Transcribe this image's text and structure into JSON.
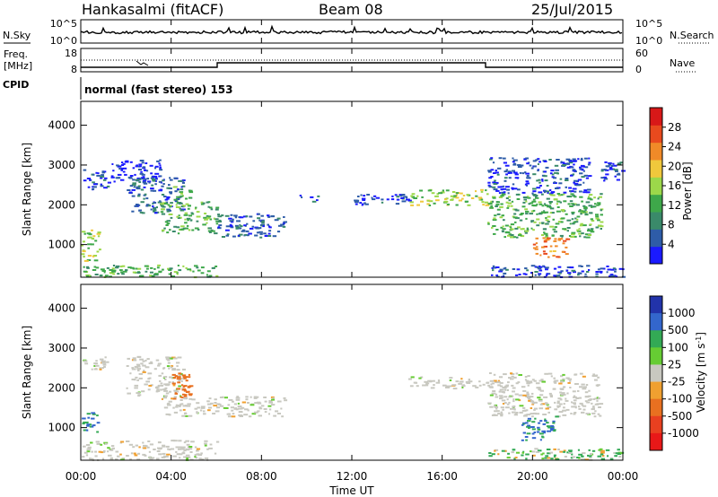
{
  "header": {
    "station": "Hankasalmi (fitACF)",
    "beam": "Beam 08",
    "date": "25/Jul/2015"
  },
  "noise_panel": {
    "left_label": "N.Sky",
    "right_label": "N.Search",
    "left_ticks": [
      "10^5",
      "10^0"
    ],
    "right_ticks": [
      "10^5",
      "10^0"
    ]
  },
  "freq_panel": {
    "left_label_line1": "Freq.",
    "left_label_line2": "[MHz]",
    "left_ticks": [
      "18",
      "8"
    ],
    "right_label": "Nave",
    "right_ticks": [
      "60",
      "0"
    ]
  },
  "cpid": {
    "label": "CPID",
    "value": "normal (fast stereo) 153"
  },
  "axes": {
    "x_ticks": [
      "00:00",
      "04:00",
      "08:00",
      "12:00",
      "16:00",
      "20:00",
      "00:00"
    ],
    "x_label": "Time UT",
    "y_ticks": [
      "1000",
      "2000",
      "3000",
      "4000"
    ],
    "y_label": "Slant Range [km]"
  },
  "colors": {
    "power": [
      "#1a1aff",
      "#2e5ca8",
      "#3a8a6a",
      "#3ea84a",
      "#9cd84a",
      "#f0c83c",
      "#f08a28",
      "#e84a1e",
      "#d81818"
    ],
    "velocity": [
      "#2233aa",
      "#3366cc",
      "#33aa55",
      "#66cc33",
      "#c8c8c0",
      "#f0a030",
      "#e87020",
      "#e84020",
      "#e81818"
    ]
  },
  "chart_data": [
    {
      "type": "heatmap",
      "title": "",
      "xlabel": "Time UT",
      "ylabel": "Slant Range [km]",
      "xlim": [
        0,
        24
      ],
      "ylim": [
        180,
        4600
      ],
      "colorbar": {
        "label": "Power [dB]",
        "ticks": [
          "4",
          "8",
          "12",
          "16",
          "20",
          "24",
          "28"
        ]
      },
      "regions": [
        {
          "t": [
            0.0,
            6.0
          ],
          "r": [
            200,
            500
          ],
          "v": 14
        },
        {
          "t": [
            0.0,
            0.8
          ],
          "r": [
            600,
            1400
          ],
          "v": 18
        },
        {
          "t": [
            0.0,
            1.2
          ],
          "r": [
            2400,
            2900
          ],
          "v": 6
        },
        {
          "t": [
            1.2,
            3.5
          ],
          "r": [
            2600,
            3150
          ],
          "v": 4
        },
        {
          "t": [
            2.0,
            4.5
          ],
          "r": [
            1800,
            2700
          ],
          "v": 8
        },
        {
          "t": [
            3.5,
            6.0
          ],
          "r": [
            1300,
            2100
          ],
          "v": 14
        },
        {
          "t": [
            4.0,
            4.8
          ],
          "r": [
            2000,
            2500
          ],
          "v": 16
        },
        {
          "t": [
            6.0,
            9.0
          ],
          "r": [
            1200,
            1800
          ],
          "v": 8
        },
        {
          "t": [
            9.5,
            10.5
          ],
          "r": [
            2100,
            2300
          ],
          "v": 6
        },
        {
          "t": [
            12.0,
            14.5
          ],
          "r": [
            2000,
            2300
          ],
          "v": 6
        },
        {
          "t": [
            14.5,
            18.0
          ],
          "r": [
            2000,
            2400
          ],
          "v": 18
        },
        {
          "t": [
            18.0,
            23.0
          ],
          "r": [
            1200,
            2300
          ],
          "v": 14
        },
        {
          "t": [
            18.0,
            22.5
          ],
          "r": [
            2300,
            3200
          ],
          "v": 6
        },
        {
          "t": [
            20.0,
            21.5
          ],
          "r": [
            700,
            1200
          ],
          "v": 26
        },
        {
          "t": [
            18.0,
            24.0
          ],
          "r": [
            200,
            500
          ],
          "v": 6
        },
        {
          "t": [
            23.0,
            24.0
          ],
          "r": [
            2600,
            3100
          ],
          "v": 6
        }
      ]
    },
    {
      "type": "heatmap",
      "title": "",
      "xlabel": "Time UT",
      "ylabel": "Slant Range [km]",
      "xlim": [
        0,
        24
      ],
      "ylim": [
        180,
        4600
      ],
      "colorbar": {
        "label": "Velocity [m s^-1]",
        "ticks": [
          "1000",
          "500",
          "100",
          "25",
          "-25",
          "-100",
          "-500",
          "-1000"
        ]
      },
      "regions": [
        {
          "t": [
            0.0,
            6.0
          ],
          "r": [
            200,
            700
          ],
          "v": 0
        },
        {
          "t": [
            0.0,
            0.8
          ],
          "r": [
            900,
            1400
          ],
          "v": 300
        },
        {
          "t": [
            0.0,
            1.2
          ],
          "r": [
            2400,
            2800
          ],
          "v": 0
        },
        {
          "t": [
            2.0,
            4.5
          ],
          "r": [
            1800,
            2800
          ],
          "v": 0
        },
        {
          "t": [
            4.0,
            4.8
          ],
          "r": [
            1700,
            2400
          ],
          "v": -300
        },
        {
          "t": [
            3.5,
            6.0
          ],
          "r": [
            1300,
            1800
          ],
          "v": 0
        },
        {
          "t": [
            6.0,
            9.0
          ],
          "r": [
            1300,
            1800
          ],
          "v": 0
        },
        {
          "t": [
            14.5,
            18.0
          ],
          "r": [
            2000,
            2300
          ],
          "v": 0
        },
        {
          "t": [
            18.0,
            23.0
          ],
          "r": [
            1300,
            2400
          ],
          "v": 0
        },
        {
          "t": [
            19.5,
            21.0
          ],
          "r": [
            700,
            1300
          ],
          "v": 300
        },
        {
          "t": [
            18.0,
            24.0
          ],
          "r": [
            200,
            500
          ],
          "v": 80
        }
      ]
    }
  ]
}
